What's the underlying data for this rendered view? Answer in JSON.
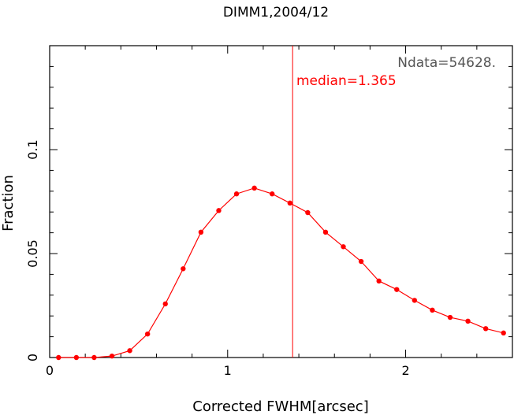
{
  "chart_data": {
    "type": "line",
    "title": "DIMM1,2004/12",
    "xlabel": "Corrected FWHM[arcsec]",
    "ylabel": "Fraction",
    "xlim": [
      0,
      2.6
    ],
    "ylim": [
      0,
      0.15
    ],
    "x_ticks": [
      0,
      1,
      2
    ],
    "x_tick_labels": [
      "0",
      "1",
      "2"
    ],
    "y_ticks": [
      0,
      0.05,
      0.1
    ],
    "y_tick_labels": [
      "0",
      "0.05",
      "0.1"
    ],
    "series": [
      {
        "color": "#ff0000",
        "x": [
          0.05,
          0.15,
          0.25,
          0.35,
          0.45,
          0.55,
          0.65,
          0.75,
          0.85,
          0.95,
          1.05,
          1.15,
          1.25,
          1.35,
          1.45,
          1.55,
          1.65,
          1.75,
          1.85,
          1.95,
          2.05,
          2.15,
          2.25,
          2.35,
          2.45,
          2.55
        ],
        "y": [
          0.0,
          0.0,
          0.0,
          0.0007,
          0.0033,
          0.0113,
          0.0258,
          0.0427,
          0.0603,
          0.0707,
          0.0787,
          0.0815,
          0.0787,
          0.0743,
          0.0697,
          0.0603,
          0.0533,
          0.0462,
          0.0368,
          0.0327,
          0.0275,
          0.0228,
          0.0193,
          0.0175,
          0.0139,
          0.0118
        ]
      }
    ],
    "median_line": {
      "x": 1.365,
      "color": "#ff0000"
    },
    "annotations": {
      "ndata": "Ndata=54628.",
      "ndata_color": "#555555",
      "median": "median=1.365",
      "median_color": "#ff0000"
    },
    "grid": false,
    "legend": "none"
  }
}
